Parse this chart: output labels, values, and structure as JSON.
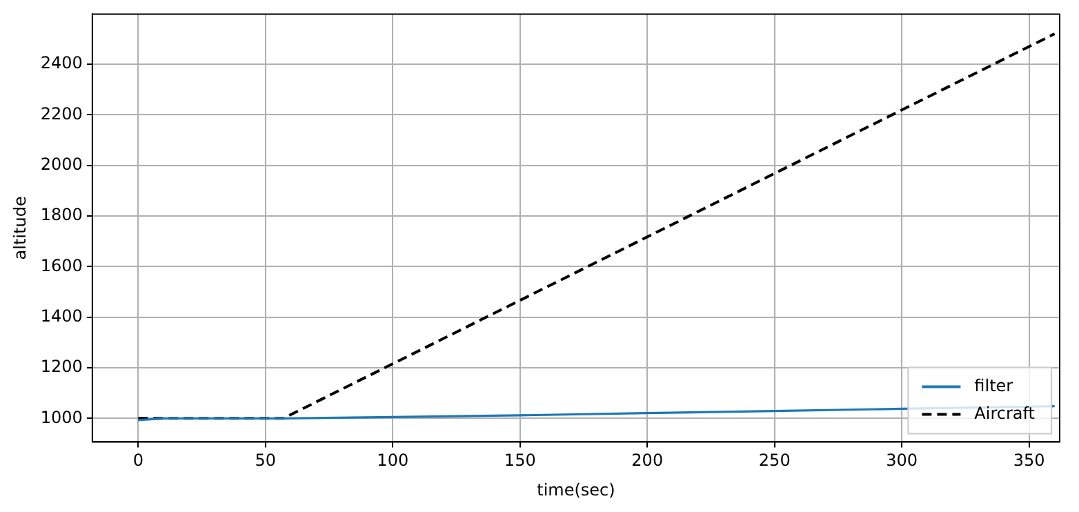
{
  "chart_data": {
    "type": "line",
    "xlabel": "time(sec)",
    "ylabel": "altitude",
    "xlim": [
      -18,
      362
    ],
    "ylim": [
      907,
      2598
    ],
    "xticks": [
      0,
      50,
      100,
      150,
      200,
      250,
      300,
      350
    ],
    "yticks": [
      1000,
      1200,
      1400,
      1600,
      1800,
      2000,
      2200,
      2400
    ],
    "grid": true,
    "legend": "bottom right",
    "series": [
      {
        "name": "filter",
        "color": "#1f77b4",
        "line_style": "solid",
        "x": [
          0,
          10,
          57,
          100,
          150,
          200,
          250,
          300,
          360
        ],
        "values": [
          993,
          1000,
          1000,
          1005,
          1012,
          1021,
          1029,
          1038,
          1048
        ]
      },
      {
        "name": "Aircraft",
        "color": "#000000",
        "line_style": "dashed",
        "x": [
          0,
          57,
          360
        ],
        "values": [
          1000,
          1000,
          2520
        ]
      }
    ]
  }
}
